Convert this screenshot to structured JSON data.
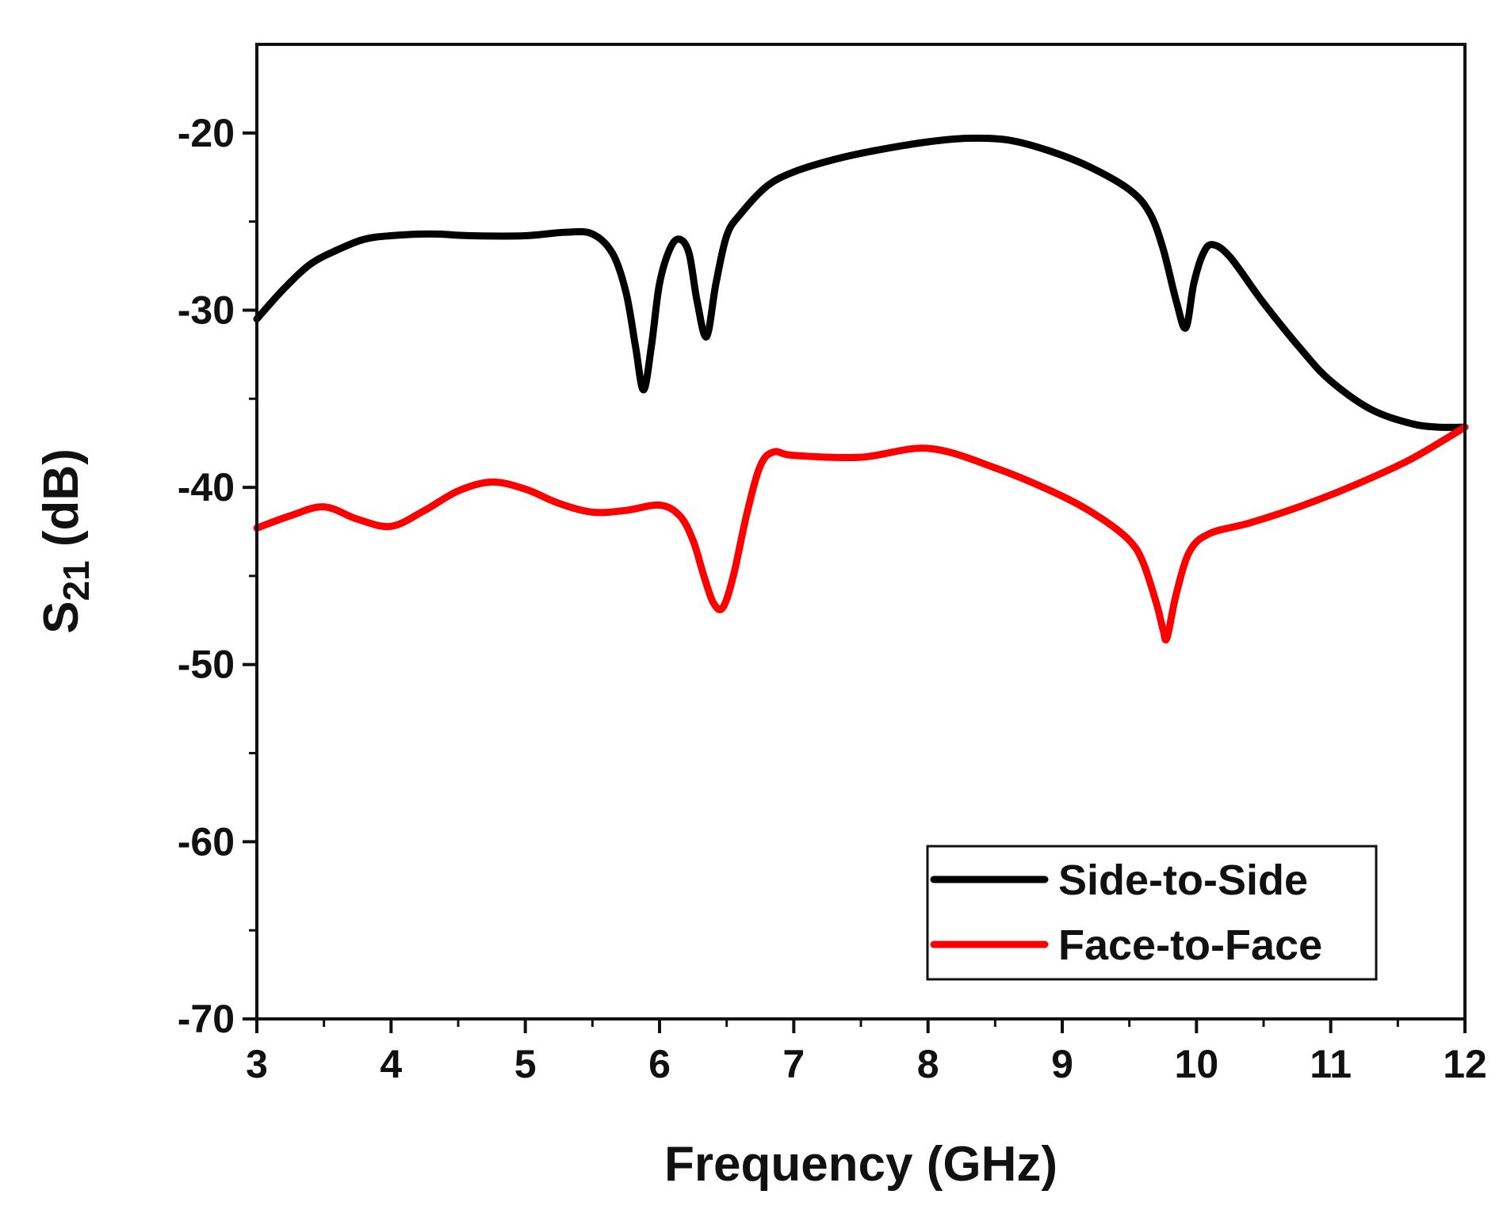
{
  "chart_data": {
    "type": "line",
    "title": "",
    "xlabel": "Frequency (GHz)",
    "ylabel": {
      "main": "S",
      "sub": "21",
      "suffix": " (dB)"
    },
    "xlim": [
      3,
      12
    ],
    "ylim": [
      -70,
      -15
    ],
    "xticks": [
      3,
      4,
      5,
      6,
      7,
      8,
      9,
      10,
      11,
      12
    ],
    "yticks": [
      -70,
      -60,
      -50,
      -40,
      -30,
      -20
    ],
    "xtick_labels": [
      "3",
      "4",
      "5",
      "6",
      "7",
      "8",
      "9",
      "10",
      "11",
      "12"
    ],
    "ytick_labels": [
      "-70",
      "-60",
      "-50",
      "-40",
      "-30",
      "-20"
    ],
    "grid": false,
    "legend_position": "bottom-right",
    "series": [
      {
        "name": "Side-to-Side",
        "color": "#000000",
        "x": [
          3.0,
          3.2,
          3.4,
          3.6,
          3.8,
          4.0,
          4.3,
          4.6,
          5.0,
          5.3,
          5.5,
          5.65,
          5.75,
          5.82,
          5.88,
          5.94,
          6.0,
          6.08,
          6.15,
          6.22,
          6.28,
          6.35,
          6.42,
          6.5,
          6.6,
          6.8,
          7.0,
          7.3,
          7.6,
          8.0,
          8.3,
          8.6,
          8.9,
          9.2,
          9.5,
          9.65,
          9.75,
          9.85,
          9.92,
          9.98,
          10.05,
          10.12,
          10.25,
          10.5,
          10.8,
          11.0,
          11.3,
          11.6,
          11.8,
          12.0
        ],
        "y": [
          -30.5,
          -28.8,
          -27.4,
          -26.6,
          -26.0,
          -25.8,
          -25.7,
          -25.8,
          -25.8,
          -25.6,
          -25.7,
          -26.8,
          -29.0,
          -32.0,
          -34.5,
          -32.0,
          -28.5,
          -26.5,
          -26.0,
          -26.8,
          -29.5,
          -31.5,
          -28.5,
          -25.8,
          -24.6,
          -23.0,
          -22.2,
          -21.5,
          -21.0,
          -20.5,
          -20.3,
          -20.4,
          -21.0,
          -21.9,
          -23.2,
          -24.5,
          -26.5,
          -29.5,
          -31.0,
          -28.5,
          -26.8,
          -26.3,
          -27.0,
          -29.6,
          -32.4,
          -34.0,
          -35.6,
          -36.4,
          -36.6,
          -36.6
        ]
      },
      {
        "name": "Face-to-Face",
        "color": "#ff0000",
        "x": [
          3.0,
          3.25,
          3.5,
          3.75,
          4.0,
          4.25,
          4.5,
          4.75,
          5.0,
          5.25,
          5.5,
          5.75,
          6.0,
          6.15,
          6.25,
          6.33,
          6.4,
          6.47,
          6.55,
          6.65,
          6.75,
          6.85,
          7.0,
          7.5,
          8.0,
          8.5,
          9.0,
          9.3,
          9.5,
          9.6,
          9.7,
          9.75,
          9.78,
          9.85,
          9.95,
          10.1,
          10.4,
          10.8,
          11.2,
          11.6,
          12.0
        ],
        "y": [
          -42.3,
          -41.6,
          -41.1,
          -41.8,
          -42.2,
          -41.3,
          -40.2,
          -39.7,
          -40.1,
          -40.9,
          -41.4,
          -41.3,
          -41.0,
          -41.6,
          -43.0,
          -45.0,
          -46.5,
          -46.8,
          -45.0,
          -41.5,
          -38.8,
          -38.0,
          -38.2,
          -38.3,
          -37.8,
          -38.9,
          -40.5,
          -41.8,
          -43.0,
          -44.2,
          -46.5,
          -48.0,
          -48.5,
          -46.0,
          -43.6,
          -42.6,
          -42.0,
          -41.0,
          -39.8,
          -38.4,
          -36.6
        ]
      }
    ]
  }
}
